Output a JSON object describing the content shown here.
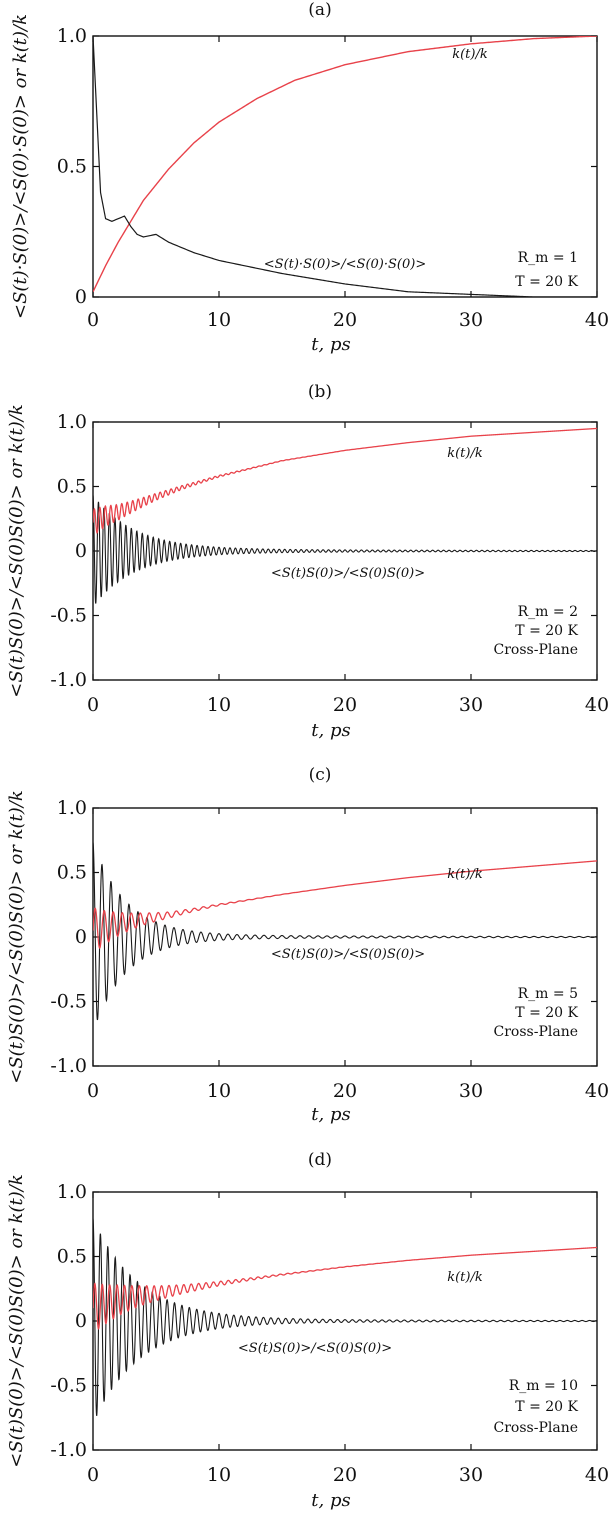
{
  "figure": {
    "colors": {
      "correlation": "#1a1a1a",
      "conductivity": "#e8424a",
      "axes": "#111111"
    }
  },
  "chart_data": [
    {
      "panel": "(a)",
      "type": "line",
      "xlabel": "t, ps",
      "ylabel": "<S(t)·S(0)>/<S(0)·S(0)> or k(t)/k",
      "xlim": [
        0,
        40
      ],
      "ylim": [
        0,
        1.0
      ],
      "xticks": [
        "0",
        "10",
        "20",
        "30",
        "40"
      ],
      "yticks": [
        "0",
        "0.5",
        "1.0"
      ],
      "grid": false,
      "labels": {
        "k": "k(t)/k",
        "s": "<S(t)·S(0)>/<S(0)·S(0)>"
      },
      "info": [
        "R_m = 1",
        "T = 20 K"
      ],
      "series": [
        {
          "name": "k(t)/k",
          "x": [
            0,
            1,
            2,
            3,
            4,
            6,
            8,
            10,
            13,
            16,
            20,
            25,
            30,
            35,
            40
          ],
          "values": [
            0.02,
            0.12,
            0.21,
            0.29,
            0.37,
            0.49,
            0.59,
            0.67,
            0.76,
            0.83,
            0.89,
            0.94,
            0.97,
            0.99,
            1.0
          ]
        },
        {
          "name": "<S(t)·S(0)>/<S(0)·S(0)>",
          "x": [
            0,
            0.3,
            0.6,
            1,
            1.5,
            2,
            2.5,
            3,
            3.5,
            4,
            5,
            6,
            8,
            10,
            12,
            15,
            20,
            25,
            30,
            35,
            40
          ],
          "values": [
            1.0,
            0.7,
            0.4,
            0.3,
            0.29,
            0.3,
            0.31,
            0.27,
            0.24,
            0.23,
            0.24,
            0.21,
            0.17,
            0.14,
            0.12,
            0.09,
            0.05,
            0.02,
            0.01,
            0.0,
            0.0
          ]
        }
      ]
    },
    {
      "panel": "(b)",
      "type": "line",
      "xlabel": "t, ps",
      "ylabel": "<S(t)S(0)>/<S(0)S(0)> or k(t)/k",
      "xlim": [
        0,
        40
      ],
      "ylim": [
        -1.0,
        1.0
      ],
      "xticks": [
        "0",
        "10",
        "20",
        "30",
        "40"
      ],
      "yticks": [
        "-1.0",
        "-0.5",
        "0",
        "0.5",
        "1.0"
      ],
      "grid": false,
      "labels": {
        "k": "k(t)/k",
        "s": "<S(t)S(0)>/<S(0)S(0)>"
      },
      "info": [
        "R_m = 2",
        "T = 20 K",
        "Cross-Plane"
      ],
      "osc": {
        "amplitude": 0.42,
        "decay_ps": 3.2,
        "frequency_per_ps": 2.3
      },
      "series": [
        {
          "name": "k(t)/k",
          "x": [
            0,
            1,
            2,
            3,
            5,
            7,
            10,
            15,
            20,
            25,
            30,
            35,
            40
          ],
          "values": [
            0.22,
            0.27,
            0.3,
            0.34,
            0.42,
            0.49,
            0.58,
            0.7,
            0.78,
            0.84,
            0.89,
            0.92,
            0.95
          ]
        }
      ]
    },
    {
      "panel": "(c)",
      "type": "line",
      "xlabel": "t, ps",
      "ylabel": "<S(t)S(0)>/<S(0)S(0)> or k(t)/k",
      "xlim": [
        0,
        40
      ],
      "ylim": [
        -1.0,
        1.0
      ],
      "xticks": [
        "0",
        "10",
        "20",
        "30",
        "40"
      ],
      "yticks": [
        "-1.0",
        "-0.5",
        "0",
        "0.5",
        "1.0"
      ],
      "grid": false,
      "labels": {
        "k": "k(t)/k",
        "s": "<S(t)S(0)>/<S(0)S(0)>"
      },
      "info": [
        "R_m = 5",
        "T = 20 K",
        "Cross-Plane"
      ],
      "osc": {
        "amplitude": 0.72,
        "decay_ps": 2.6,
        "frequency_per_ps": 1.4
      },
      "series": [
        {
          "name": "k(t)/k",
          "x": [
            0,
            2,
            4,
            6,
            8,
            10,
            15,
            20,
            25,
            30,
            35,
            40
          ],
          "values": [
            0.05,
            0.1,
            0.14,
            0.17,
            0.21,
            0.25,
            0.33,
            0.4,
            0.46,
            0.51,
            0.55,
            0.59
          ]
        }
      ]
    },
    {
      "panel": "(d)",
      "type": "line",
      "xlabel": "t, ps",
      "ylabel": "<S(t)S(0)>/<S(0)S(0)> or k(t)/k",
      "xlim": [
        0,
        40
      ],
      "ylim": [
        -1.0,
        1.0
      ],
      "xticks": [
        "0",
        "10",
        "20",
        "30",
        "40"
      ],
      "yticks": [
        "-1.0",
        "-0.5",
        "0",
        "0.5",
        "1.0"
      ],
      "grid": false,
      "labels": {
        "k": "k(t)/k",
        "s": "<S(t)S(0)>/<S(0)S(0)>"
      },
      "info": [
        "R_m = 10",
        "T = 20 K",
        "Cross-Plane"
      ],
      "osc": {
        "amplitude": 0.78,
        "decay_ps": 3.6,
        "frequency_per_ps": 1.7
      },
      "series": [
        {
          "name": "k(t)/k",
          "x": [
            0,
            2,
            4,
            6,
            8,
            10,
            15,
            20,
            25,
            30,
            35,
            40
          ],
          "values": [
            0.1,
            0.16,
            0.2,
            0.23,
            0.26,
            0.29,
            0.36,
            0.42,
            0.47,
            0.51,
            0.54,
            0.57
          ]
        }
      ]
    }
  ]
}
